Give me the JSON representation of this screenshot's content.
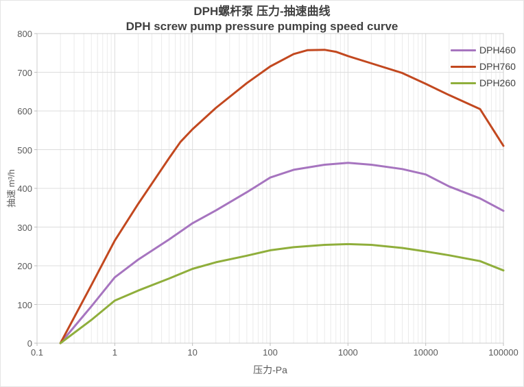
{
  "chart_data": {
    "type": "line",
    "title_zh": "DPH螺杆泵 压力-抽速曲线",
    "title_en": "DPH screw pump pressure pumping speed curve",
    "xlabel": "压力-Pa",
    "ylabel": "抽速 m³/h",
    "x_scale": "log",
    "xlim": [
      0.1,
      100000
    ],
    "ylim": [
      0,
      800
    ],
    "x_ticks": [
      0.1,
      1,
      10,
      100,
      1000,
      10000,
      100000
    ],
    "x_tick_labels": [
      "0.1",
      "1",
      "10",
      "100",
      "1000",
      "10000",
      "100000"
    ],
    "y_ticks": [
      0,
      100,
      200,
      300,
      400,
      500,
      600,
      700,
      800
    ],
    "y_tick_labels": [
      "0",
      "100",
      "200",
      "300",
      "400",
      "500",
      "600",
      "700",
      "800"
    ],
    "grid": {
      "major": true,
      "minor_x": true
    },
    "legend_position": "top-right-inside",
    "colors": {
      "major_grid": "#dcdcdc",
      "minor_grid": "#ebebeb",
      "border": "#cccccc",
      "tick": "#bdbdbd",
      "title_text": "#3f3f3f",
      "axis_text": "#595959"
    },
    "series": [
      {
        "name": "DPH460",
        "color": "#a674bf",
        "points": [
          [
            0.2,
            0
          ],
          [
            0.5,
            95
          ],
          [
            1,
            170
          ],
          [
            2,
            216
          ],
          [
            5,
            268
          ],
          [
            10,
            310
          ],
          [
            20,
            343
          ],
          [
            50,
            390
          ],
          [
            100,
            428
          ],
          [
            200,
            448
          ],
          [
            500,
            461
          ],
          [
            1000,
            466
          ],
          [
            2000,
            461
          ],
          [
            5000,
            450
          ],
          [
            10000,
            436
          ],
          [
            20000,
            405
          ],
          [
            50000,
            374
          ],
          [
            100000,
            342
          ]
        ]
      },
      {
        "name": "DPH760",
        "color": "#c2481f",
        "points": [
          [
            0.2,
            0
          ],
          [
            0.5,
            150
          ],
          [
            1,
            265
          ],
          [
            2,
            360
          ],
          [
            5,
            478
          ],
          [
            7,
            520
          ],
          [
            10,
            553
          ],
          [
            20,
            608
          ],
          [
            50,
            672
          ],
          [
            100,
            715
          ],
          [
            200,
            747
          ],
          [
            300,
            757
          ],
          [
            500,
            758
          ],
          [
            700,
            753
          ],
          [
            1000,
            742
          ],
          [
            2000,
            723
          ],
          [
            5000,
            698
          ],
          [
            10000,
            670
          ],
          [
            20000,
            641
          ],
          [
            50000,
            605
          ],
          [
            100000,
            510
          ]
        ]
      },
      {
        "name": "DPH260",
        "color": "#8fae3b",
        "points": [
          [
            0.2,
            0
          ],
          [
            0.5,
            60
          ],
          [
            1,
            110
          ],
          [
            2,
            136
          ],
          [
            5,
            167
          ],
          [
            10,
            192
          ],
          [
            20,
            209
          ],
          [
            50,
            226
          ],
          [
            100,
            240
          ],
          [
            200,
            248
          ],
          [
            500,
            254
          ],
          [
            1000,
            256
          ],
          [
            2000,
            254
          ],
          [
            5000,
            246
          ],
          [
            10000,
            237
          ],
          [
            20000,
            227
          ],
          [
            50000,
            212
          ],
          [
            100000,
            188
          ]
        ]
      }
    ]
  }
}
